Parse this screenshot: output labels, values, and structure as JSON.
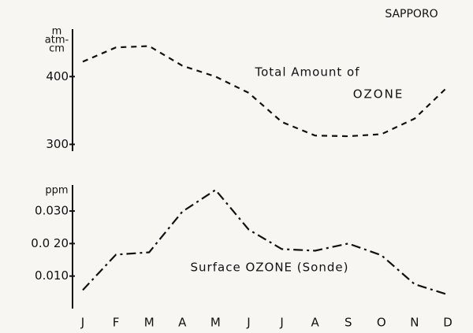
{
  "chart_data": [
    {
      "type": "line",
      "title": "SAPPORO",
      "ylabel": [
        "m",
        "atm-",
        "cm"
      ],
      "annotations": [
        "Total Amount of",
        "OZONE"
      ],
      "values": [
        422,
        443,
        445,
        416,
        400,
        376,
        333,
        313,
        312,
        315,
        338,
        385
      ],
      "color": "#111111",
      "line_style": "dashed",
      "ylim": [
        290,
        470
      ],
      "yticks": [
        300,
        400
      ]
    },
    {
      "type": "line",
      "ylabel": [
        "ppm"
      ],
      "annotations": [
        "Surface OZONE (Sonde)"
      ],
      "categories": [
        "J",
        "F",
        "M",
        "A",
        "M",
        "J",
        "J",
        "A",
        "S",
        "O",
        "N",
        "D"
      ],
      "values": [
        0.0057,
        0.0166,
        0.0173,
        0.0298,
        0.0365,
        0.0243,
        0.0183,
        0.0178,
        0.02,
        0.0164,
        0.0075,
        0.0043
      ],
      "color": "#111111",
      "line_style": "dashdot",
      "ylim": [
        0,
        0.038
      ],
      "yticks": [
        {
          "value": 0.03,
          "label": "0.030"
        },
        {
          "value": 0.02,
          "label": "0.0 20"
        },
        {
          "value": 0.01,
          "label": "0.010"
        }
      ]
    }
  ]
}
